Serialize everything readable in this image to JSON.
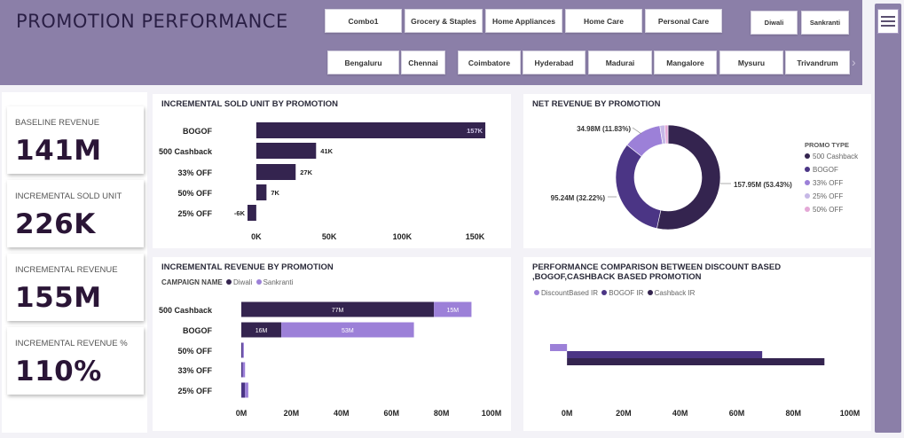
{
  "header": {
    "title": "PROMOTION PERFORMANCE",
    "category_slicers": [
      "Combo1",
      "Grocery & Staples",
      "Home Appliances",
      "Home Care",
      "Personal Care"
    ],
    "campaign_slicers": [
      "Diwali",
      "Sankranti"
    ],
    "city_slicers": [
      "Bengaluru",
      "Chennai",
      "Coimbatore",
      "Hyderabad",
      "Madurai",
      "Mangalore",
      "Mysuru",
      "Trivandrum"
    ]
  },
  "kpis": [
    {
      "label": "BASELINE REVENUE",
      "value": "141M"
    },
    {
      "label": "INCREMENTAL SOLD UNIT",
      "value": "226K"
    },
    {
      "label": "INCREMENTAL REVENUE",
      "value": "155M"
    },
    {
      "label": "INCREMENTAL REVENUE %",
      "value": "110%"
    }
  ],
  "colors": {
    "header_bg": "#8b7fa8",
    "dark_purple": "#34244f",
    "mid_purple": "#4b3585",
    "light_purple": "#9c80d8",
    "lavender": "#c6b8e6",
    "pink": "#e4a8d6"
  },
  "chart_data": [
    {
      "type": "bar",
      "orientation": "horizontal",
      "title": "INCREMENTAL SOLD UNIT BY PROMOTION",
      "categories": [
        "BOGOF",
        "500 Cashback",
        "33% OFF",
        "50% OFF",
        "25% OFF"
      ],
      "values": [
        157,
        41,
        27,
        7,
        -6
      ],
      "data_labels": [
        "157K",
        "41K",
        "27K",
        "7K",
        "-6K"
      ],
      "xlim": [
        -6,
        160
      ],
      "x_ticks": [
        "0K",
        "50K",
        "100K",
        "150K"
      ],
      "x_tick_values": [
        0,
        50,
        100,
        150
      ]
    },
    {
      "type": "pie",
      "variant": "donut",
      "title": "NET REVENUE BY PROMOTION",
      "legend_title": "PROMO TYPE",
      "legend_position": "right",
      "labels": [
        "500 Cashback",
        "BOGOF",
        "33% OFF",
        "25% OFF",
        "50% OFF"
      ],
      "values": [
        53.43,
        32.22,
        11.83,
        1.5,
        1.02
      ],
      "data_labels": [
        "157.95M (53.43%)",
        "95.24M (32.22%)",
        "34.98M (11.83%)",
        "",
        ""
      ]
    },
    {
      "type": "bar",
      "orientation": "horizontal",
      "stacked": true,
      "title": "INCREMENTAL REVENUE BY PROMOTION",
      "legend_title": "CAMPAIGN NAME",
      "legend_position": "top-left",
      "categories": [
        "500 Cashback",
        "BOGOF",
        "50% OFF",
        "33% OFF",
        "25% OFF"
      ],
      "series": [
        {
          "name": "Diwali",
          "values": [
            77,
            16,
            0.5,
            0.5,
            1.5
          ],
          "data_labels": [
            "77M",
            "16M",
            "",
            "",
            ""
          ]
        },
        {
          "name": "Sankranti",
          "values": [
            15,
            53,
            0.3,
            1,
            1.3
          ],
          "data_labels": [
            "15M",
            "53M",
            "",
            "",
            ""
          ]
        }
      ],
      "xlim": [
        0,
        100
      ],
      "x_ticks": [
        "0M",
        "20M",
        "40M",
        "60M",
        "80M",
        "100M"
      ],
      "x_tick_values": [
        0,
        20,
        40,
        60,
        80,
        100
      ]
    },
    {
      "type": "bar",
      "orientation": "horizontal",
      "title": "PERFORMANCE COMPARISON BETWEEN DISCOUNT BASED ,BOGOF,CASHBACK BASED PROMOTION",
      "legend_position": "top-left",
      "series": [
        {
          "name": "DiscountBased IR",
          "value": -6
        },
        {
          "name": "BOGOF IR",
          "value": 69
        },
        {
          "name": "Cashback IR",
          "value": 91
        }
      ],
      "xlim": [
        -6,
        100
      ],
      "x_ticks": [
        "0M",
        "20M",
        "40M",
        "60M",
        "80M",
        "100M"
      ],
      "x_tick_values": [
        0,
        20,
        40,
        60,
        80,
        100
      ]
    }
  ]
}
